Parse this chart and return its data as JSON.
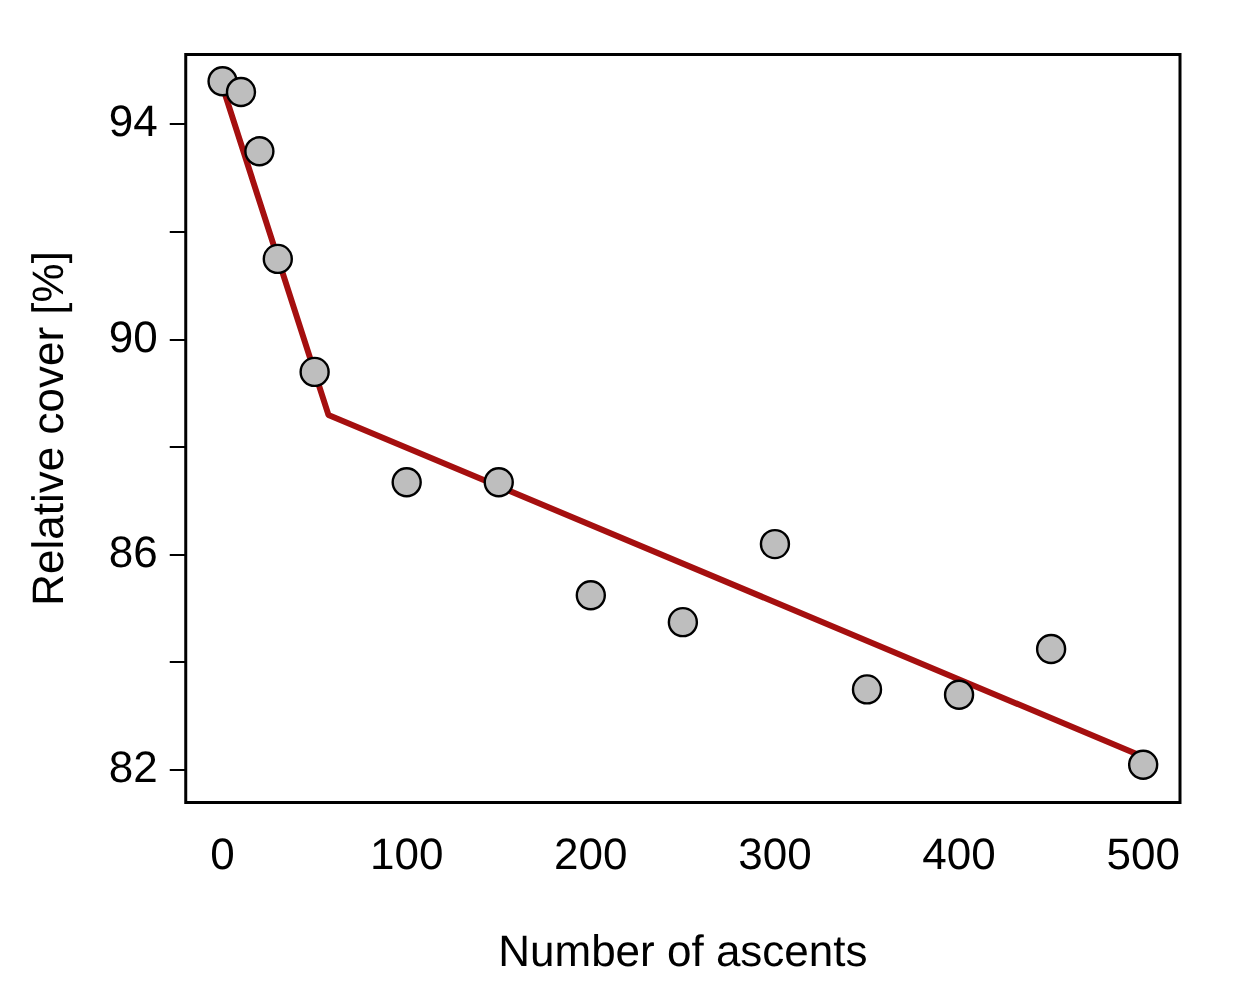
{
  "chart_data": {
    "type": "scatter",
    "xlabel": "Number of ascents",
    "ylabel": "Relative cover [%]",
    "xlim": [
      -20,
      520
    ],
    "xticks": [
      0,
      100,
      200,
      300,
      400,
      500
    ],
    "ylim": [
      81.4,
      95.3
    ],
    "yticks": [
      82,
      {
        "value": 84,
        "label": null
      },
      86,
      {
        "value": 88,
        "label": null
      },
      90,
      {
        "value": 92,
        "label": null
      },
      94
    ],
    "grid": false,
    "marker": "circle",
    "series": [
      {
        "color": "#bebebe",
        "x": [
          0,
          10,
          20,
          30,
          50,
          100,
          150,
          200,
          250,
          300,
          350,
          400,
          450,
          500
        ],
        "values": [
          94.8,
          94.6,
          93.5,
          91.5,
          89.4,
          87.35,
          87.35,
          85.25,
          84.75,
          86.2,
          83.5,
          83.4,
          84.25,
          82.1
        ]
      },
      {
        "type": "line",
        "color": "#a50f0f",
        "marker": "none",
        "x": [
          0,
          57.5,
          500
        ],
        "values": [
          94.7,
          88.6,
          82.25
        ]
      }
    ]
  }
}
